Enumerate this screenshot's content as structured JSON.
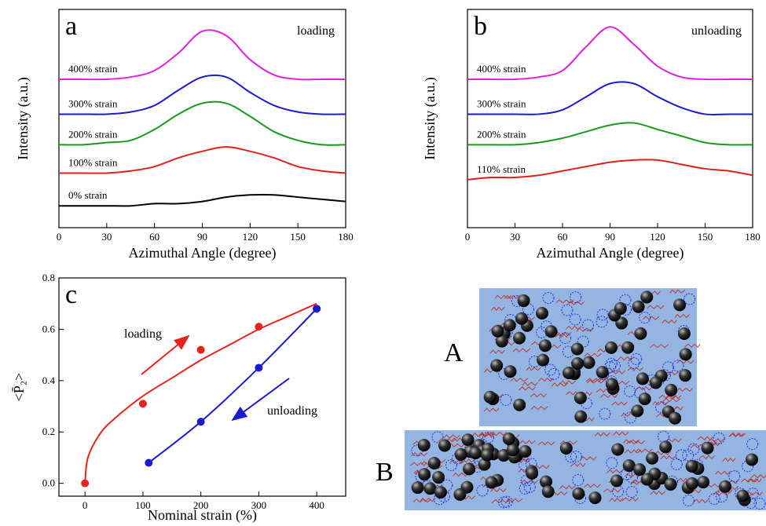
{
  "chart_data": [
    {
      "type": "line",
      "panel_label": "a",
      "annotation": "loading",
      "x_label": "Azimuthal Angle (degree)",
      "y_label": "Intensity (a.u.)",
      "xlim": [
        0,
        180
      ],
      "xticks": [
        0,
        30,
        60,
        90,
        120,
        150,
        180
      ],
      "ylim": [
        0,
        10
      ],
      "x": [
        0,
        15,
        30,
        45,
        60,
        75,
        90,
        105,
        120,
        135,
        150,
        165,
        180
      ],
      "series": [
        {
          "name": "400% strain",
          "color": "#e020e0",
          "values": [
            6.8,
            6.8,
            6.8,
            6.9,
            7.2,
            8.0,
            9.0,
            8.8,
            7.7,
            7.0,
            6.8,
            6.8,
            6.8
          ]
        },
        {
          "name": "300% strain",
          "color": "#1a1ad0",
          "values": [
            5.2,
            5.2,
            5.2,
            5.3,
            5.6,
            6.3,
            6.9,
            6.9,
            6.2,
            5.6,
            5.3,
            5.2,
            5.2
          ]
        },
        {
          "name": "200% strain",
          "color": "#1a9a1a",
          "values": [
            3.8,
            3.8,
            3.9,
            4.0,
            4.5,
            5.2,
            5.7,
            5.7,
            5.1,
            4.4,
            4.0,
            3.8,
            3.8
          ]
        },
        {
          "name": "100% strain",
          "color": "#e02020",
          "values": [
            2.5,
            2.5,
            2.5,
            2.6,
            2.8,
            3.2,
            3.5,
            3.7,
            3.5,
            3.2,
            2.8,
            2.6,
            2.5
          ]
        },
        {
          "name": "0% strain",
          "color": "#000000",
          "values": [
            1.0,
            1.0,
            1.0,
            1.0,
            1.1,
            1.1,
            1.2,
            1.4,
            1.5,
            1.5,
            1.4,
            1.3,
            1.2
          ]
        }
      ]
    },
    {
      "type": "line",
      "panel_label": "b",
      "annotation": "unloading",
      "x_label": "Azimuthal Angle (degree)",
      "y_label": "Intensity (a.u.)",
      "xlim": [
        0,
        180
      ],
      "xticks": [
        0,
        30,
        60,
        90,
        120,
        150,
        180
      ],
      "ylim": [
        0,
        10
      ],
      "x": [
        0,
        15,
        30,
        45,
        60,
        75,
        90,
        105,
        120,
        135,
        150,
        165,
        180
      ],
      "series": [
        {
          "name": "400% strain",
          "color": "#e020e0",
          "values": [
            6.8,
            6.8,
            6.8,
            6.9,
            7.2,
            8.3,
            9.2,
            8.4,
            7.4,
            6.9,
            6.8,
            6.8,
            6.8
          ]
        },
        {
          "name": "300% strain",
          "color": "#1a1ad0",
          "values": [
            5.2,
            5.2,
            5.2,
            5.2,
            5.4,
            6.0,
            6.6,
            6.6,
            6.0,
            5.5,
            5.2,
            5.2,
            5.2
          ]
        },
        {
          "name": "200% strain",
          "color": "#1a9a1a",
          "values": [
            3.8,
            3.8,
            3.8,
            3.9,
            4.1,
            4.4,
            4.7,
            4.8,
            4.5,
            4.2,
            3.9,
            3.8,
            3.8
          ]
        },
        {
          "name": "110% strain",
          "color": "#e02020",
          "values": [
            2.2,
            2.3,
            2.3,
            2.4,
            2.6,
            2.8,
            3.0,
            3.1,
            3.1,
            2.9,
            2.7,
            2.6,
            2.4
          ]
        }
      ]
    },
    {
      "type": "scatter",
      "panel_label": "c",
      "annotations": [
        "loading",
        "unloading"
      ],
      "x_label": "Nominal strain (%)",
      "y_label": "<P̄₂>",
      "xlim": [
        -45,
        450
      ],
      "xticks": [
        0,
        100,
        200,
        300,
        400
      ],
      "ylim": [
        -0.05,
        0.8
      ],
      "yticks": [
        {
          "value": 0,
          "label": "0.0"
        },
        0.2,
        0.4,
        0.6,
        0.8
      ],
      "series": [
        {
          "color": "#e8231e",
          "markers": true,
          "x": [
            0,
            100,
            200,
            300,
            400
          ],
          "values": [
            0,
            0.31,
            0.52,
            0.61,
            0.68
          ]
        },
        {
          "color": "#e8231e",
          "line": true,
          "x": [
            0,
            5,
            25,
            50,
            100,
            150,
            200,
            250,
            300,
            350,
            400
          ],
          "values": [
            0,
            0.1,
            0.19,
            0.25,
            0.34,
            0.41,
            0.48,
            0.54,
            0.6,
            0.65,
            0.7
          ]
        },
        {
          "color": "#1a1ad0",
          "markers": true,
          "line": true,
          "x": [
            110,
            200,
            300,
            400
          ],
          "values": [
            0.08,
            0.24,
            0.45,
            0.68
          ]
        }
      ]
    }
  ],
  "schematic": {
    "labels": [
      "A",
      "B"
    ]
  }
}
